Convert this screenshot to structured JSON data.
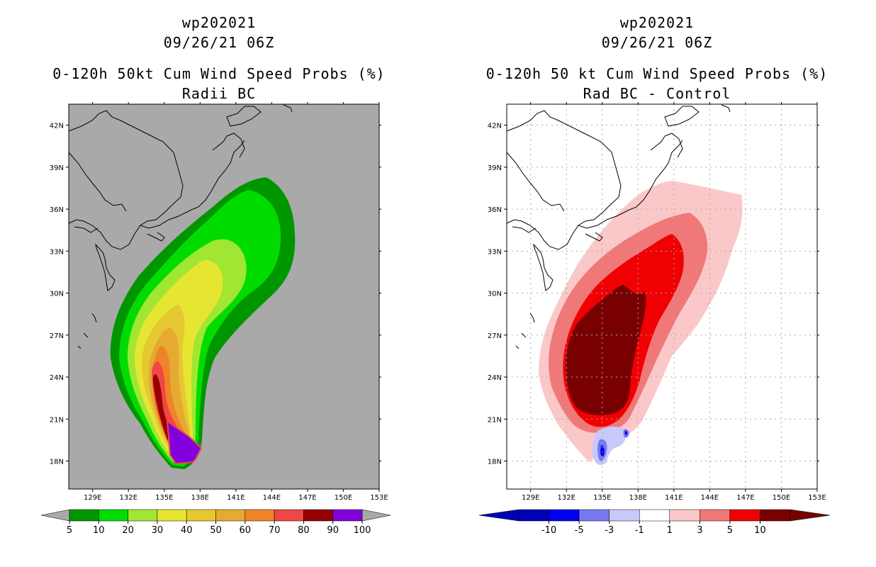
{
  "left_panel": {
    "title_line1": "wp202021",
    "title_line2": "09/26/21 06Z",
    "title_line3": "0-120h 50kt Cum Wind Speed Probs (%)",
    "title_line4": "Radii BC",
    "colorbar": {
      "colors": [
        "#009600",
        "#00dc00",
        "#a0e632",
        "#e6e632",
        "#e6c832",
        "#e6aa32",
        "#f08228",
        "#f04646",
        "#960000",
        "#8200dc"
      ],
      "labels": [
        "5",
        "10",
        "20",
        "30",
        "40",
        "50",
        "60",
        "70",
        "80",
        "90",
        "100"
      ]
    }
  },
  "right_panel": {
    "title_line1": "wp202021",
    "title_line2": "09/26/21 06Z",
    "title_line3": "0-120h 50 kt Cum Wind Speed Probs (%)",
    "title_line4": "Rad BC - Control",
    "colorbar": {
      "colors": [
        "#0000b4",
        "#0000f0",
        "#7878f0",
        "#c8c8fa",
        "#ffffff",
        "#fac8c8",
        "#f07878",
        "#f00000",
        "#780000"
      ],
      "labels": [
        "-10",
        "-5",
        "-3",
        "-1",
        "1",
        "3",
        "5",
        "10"
      ]
    }
  },
  "map_axes": {
    "lon_labels": [
      "129E",
      "132E",
      "135E",
      "138E",
      "141E",
      "144E",
      "147E",
      "150E",
      "153E"
    ],
    "lat_labels": [
      "42N",
      "39N",
      "36N",
      "33N",
      "30N",
      "27N",
      "24N",
      "21N",
      "18N"
    ],
    "lon_range": [
      127,
      153
    ],
    "lat_range": [
      16,
      43.5
    ]
  },
  "colors": {
    "land_fill_left": "#a9a9a9",
    "background": "#ffffff"
  }
}
